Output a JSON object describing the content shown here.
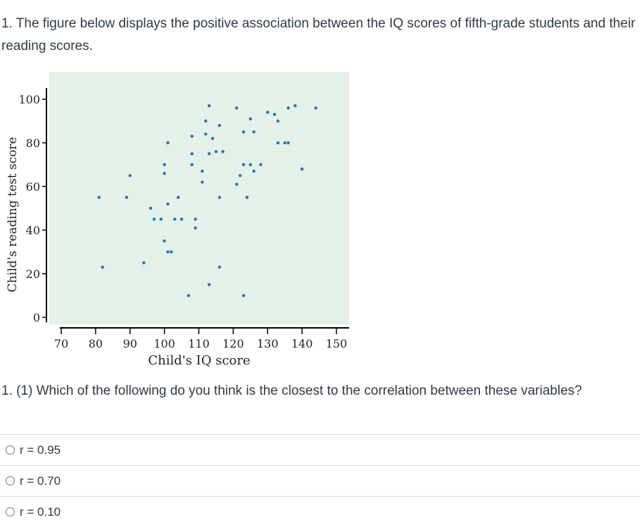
{
  "intro_text": "1. The figure below displays the positive association between the IQ scores of fifth-grade students and their reading scores.",
  "question_text": "1. (1) Which of the following do you think is the closest to the correlation between these variables?",
  "options": [
    {
      "label": "r = 0.95",
      "selected": false
    },
    {
      "label": "r = 0.70",
      "selected": false
    },
    {
      "label": "r = 0.10",
      "selected": false
    }
  ],
  "colors": {
    "plot_background": "#e3f1e6",
    "point": "#1a73c9",
    "text": "#2d3b45",
    "axis": "#000000"
  },
  "chart_data": {
    "type": "scatter",
    "title": "",
    "xlabel": "Child's IQ score",
    "ylabel": "Child's reading test score",
    "xlim": [
      70,
      150
    ],
    "ylim": [
      0,
      100
    ],
    "x_ticks": [
      "70",
      "80",
      "90",
      "100",
      "110",
      "120",
      "130",
      "140",
      "150"
    ],
    "y_ticks": [
      "0",
      "20",
      "40",
      "60",
      "80",
      "100"
    ],
    "grid": false,
    "legend": "none",
    "points": [
      [
        81,
        55
      ],
      [
        82,
        23
      ],
      [
        89,
        55
      ],
      [
        90,
        65
      ],
      [
        94,
        25
      ],
      [
        96,
        50
      ],
      [
        97,
        45
      ],
      [
        99,
        45
      ],
      [
        100,
        35
      ],
      [
        100,
        66
      ],
      [
        100,
        70
      ],
      [
        101,
        52
      ],
      [
        101,
        80
      ],
      [
        101,
        30
      ],
      [
        102,
        30
      ],
      [
        103,
        45
      ],
      [
        104,
        55
      ],
      [
        105,
        45
      ],
      [
        107,
        10
      ],
      [
        108,
        83
      ],
      [
        108,
        75
      ],
      [
        108,
        70
      ],
      [
        109,
        45
      ],
      [
        109,
        41
      ],
      [
        111,
        67
      ],
      [
        111,
        62
      ],
      [
        112,
        90
      ],
      [
        112,
        84
      ],
      [
        113,
        97
      ],
      [
        113,
        15
      ],
      [
        113,
        75
      ],
      [
        114,
        82
      ],
      [
        115,
        76
      ],
      [
        116,
        88
      ],
      [
        116,
        23
      ],
      [
        116,
        55
      ],
      [
        117,
        76
      ],
      [
        121,
        61
      ],
      [
        121,
        96
      ],
      [
        122,
        65
      ],
      [
        123,
        85
      ],
      [
        123,
        70
      ],
      [
        123,
        10
      ],
      [
        124,
        55
      ],
      [
        125,
        70
      ],
      [
        125,
        91
      ],
      [
        126,
        85
      ],
      [
        126,
        67
      ],
      [
        128,
        70
      ],
      [
        130,
        94
      ],
      [
        132,
        93
      ],
      [
        133,
        90
      ],
      [
        133,
        80
      ],
      [
        135,
        80
      ],
      [
        136,
        96
      ],
      [
        136,
        80
      ],
      [
        138,
        97
      ],
      [
        140,
        68
      ],
      [
        144,
        96
      ]
    ]
  }
}
